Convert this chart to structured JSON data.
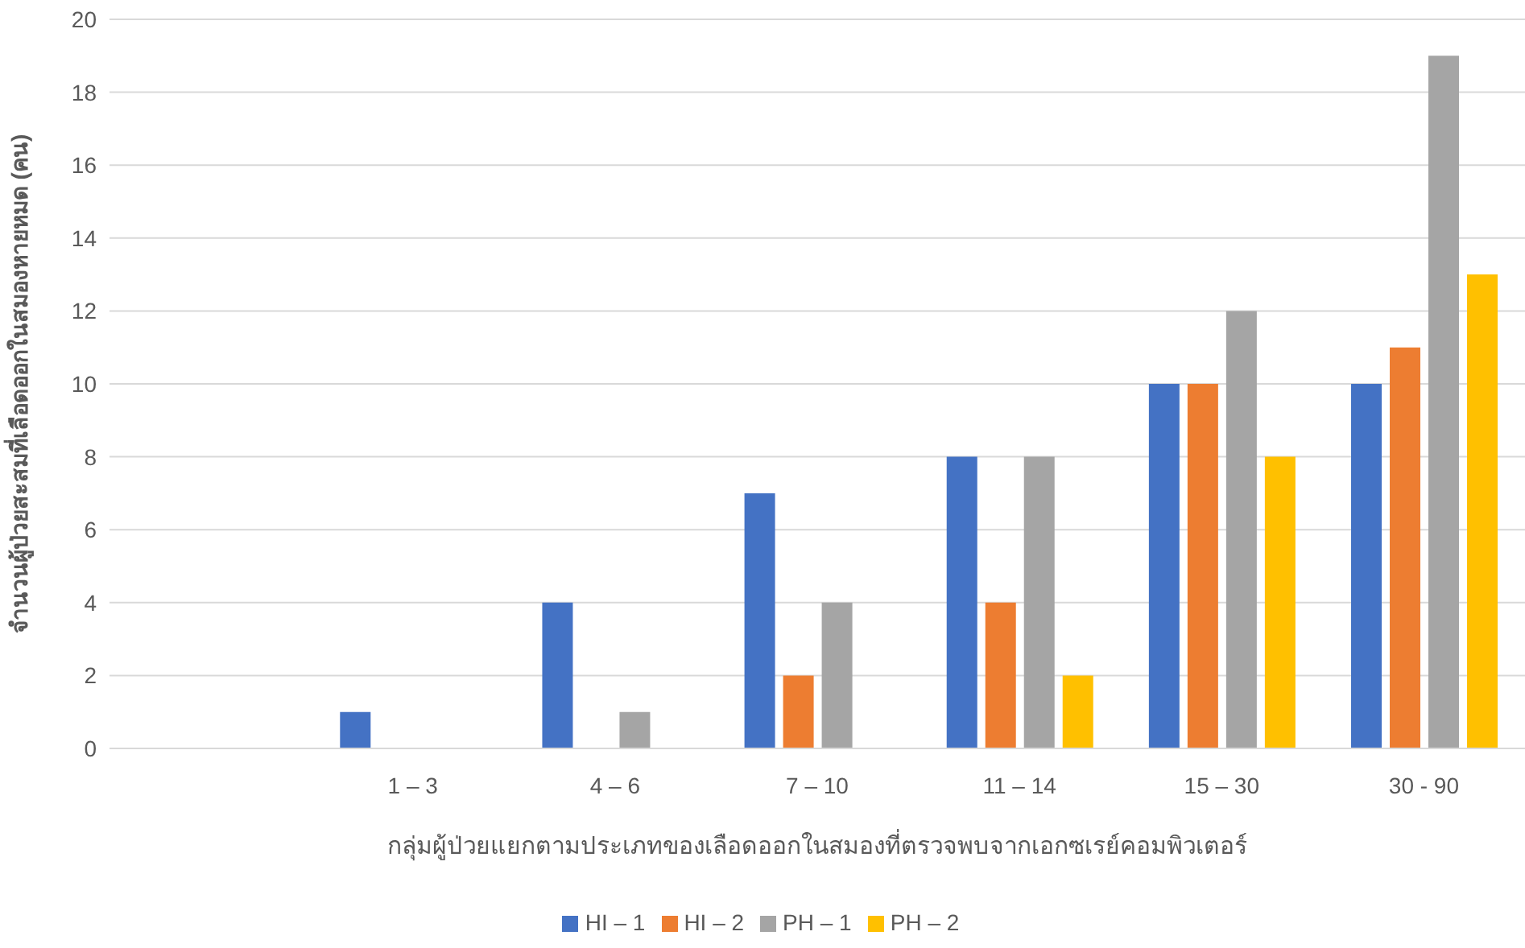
{
  "chart_data": {
    "type": "bar",
    "xlabel": "กลุ่มผู้ป่วยแยกตามประเภทของเลือดออกในสมองที่ตรวจพบจากเอกซเรย์คอมพิวเตอร์",
    "ylabel": "จำนวนผู้ป่วยสะสมที่เลือดออกในสมองหายหมด (คน)",
    "categories": [
      null,
      "1 – 3",
      "4 – 6",
      "7 – 10",
      "11 – 14",
      "15 – 30",
      "30 - 90"
    ],
    "series": [
      {
        "name": "HI – 1",
        "color": "#4472c4",
        "values": [
          null,
          1,
          4,
          7,
          8,
          10,
          10
        ]
      },
      {
        "name": "HI – 2",
        "color": "#ed7d31",
        "values": [
          null,
          0,
          0,
          2,
          4,
          10,
          11
        ]
      },
      {
        "name": "PH – 1",
        "color": "#a5a5a5",
        "values": [
          null,
          0,
          1,
          4,
          8,
          12,
          19
        ]
      },
      {
        "name": "PH – 2",
        "color": "#ffc000",
        "values": [
          null,
          0,
          0,
          0,
          2,
          8,
          13
        ]
      }
    ],
    "ylim": [
      0,
      20
    ],
    "yticks": [
      0,
      2,
      4,
      6,
      8,
      10,
      12,
      14,
      16,
      18,
      20
    ],
    "grid": "y",
    "legend": "bottom"
  }
}
